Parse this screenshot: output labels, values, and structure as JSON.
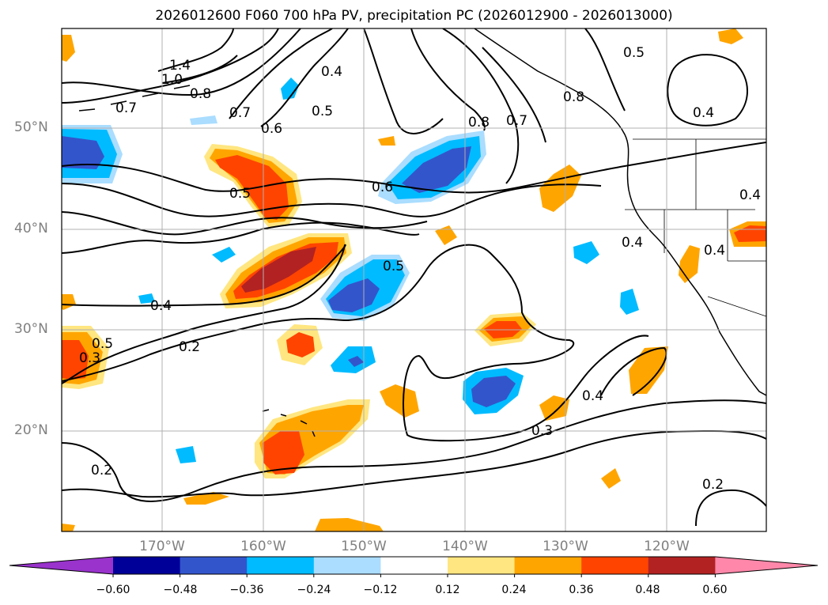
{
  "title": "2026012600 F060 700 hPa PV, precipitation PC (2026012900 - 2026013000)",
  "map": {
    "lat_labels": [
      {
        "label": "50°N",
        "lat": 50
      },
      {
        "label": "40°N",
        "lat": 40
      },
      {
        "label": "30°N",
        "lat": 30
      },
      {
        "label": "20°N",
        "lat": 20
      }
    ],
    "lon_labels": [
      {
        "label": "170°W",
        "lon": -170
      },
      {
        "label": "160°W",
        "lon": -160
      },
      {
        "label": "150°W",
        "lon": -150
      },
      {
        "label": "140°W",
        "lon": -140
      },
      {
        "label": "130°W",
        "lon": -130
      },
      {
        "label": "120°W",
        "lon": -120
      }
    ],
    "contour_labels": [
      "1.4",
      "1.0",
      "0.8",
      "0.7",
      "0.7",
      "0.6",
      "0.5",
      "0.4",
      "0.5",
      "0.6",
      "0.8",
      "0.7",
      "0.8",
      "0.5",
      "0.4",
      "0.5",
      "0.4",
      "0.5",
      "0.4",
      "0.3",
      "0.2",
      "0.4",
      "0.3",
      "0.2",
      "0.2",
      "0.4",
      "0.4"
    ]
  },
  "colorbar": {
    "ticks": [
      "−0.60",
      "−0.48",
      "−0.36",
      "−0.24",
      "−0.12",
      "0.12",
      "0.24",
      "0.36",
      "0.48",
      "0.60"
    ],
    "colors": [
      "#9933cc",
      "#000099",
      "#3355cc",
      "#00bbff",
      "#aaddff",
      "#ffffff",
      "#ffe680",
      "#ffa500",
      "#ff4400",
      "#b22222",
      "#ff88aa"
    ]
  },
  "colors": {
    "neg_light": "#aaddff",
    "neg_mid": "#00bbff",
    "neg_dark": "#3355cc",
    "pos_light": "#ffe680",
    "pos_mid": "#ffa500",
    "pos_strong": "#ff4400",
    "pos_dark": "#b22222"
  }
}
